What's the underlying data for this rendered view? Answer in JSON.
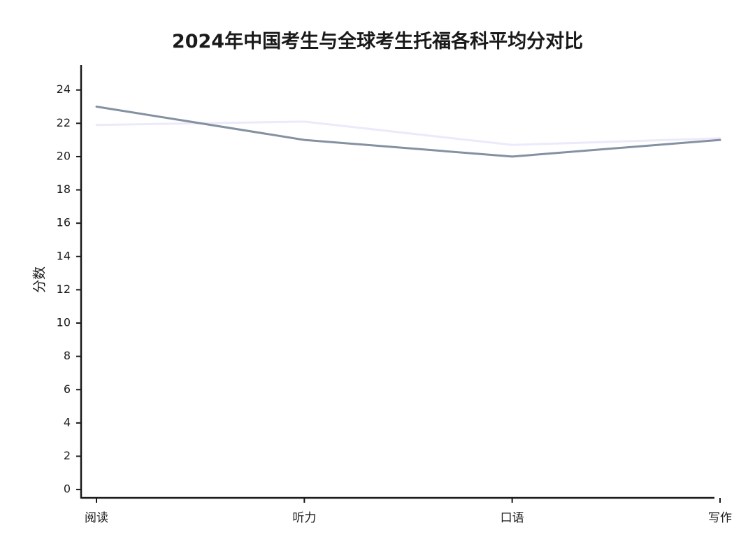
{
  "chart_data": {
    "type": "line",
    "title": "2024年中国考生与全球考生托福各科平均分对比",
    "xlabel": "",
    "ylabel": "分数",
    "categories": [
      "阅读",
      "听力",
      "口语",
      "写作"
    ],
    "ylim": [
      -0.5,
      25.5
    ],
    "yticks": [
      0,
      2,
      4,
      6,
      8,
      10,
      12,
      14,
      16,
      18,
      20,
      22,
      24
    ],
    "grid": false,
    "legend": "none",
    "series": [
      {
        "values": [
          23,
          21,
          20,
          21
        ],
        "color": "#8391a1"
      },
      {
        "values": [
          21.9,
          22.1,
          20.7,
          21.1
        ],
        "color": "#ece9fb"
      }
    ]
  }
}
